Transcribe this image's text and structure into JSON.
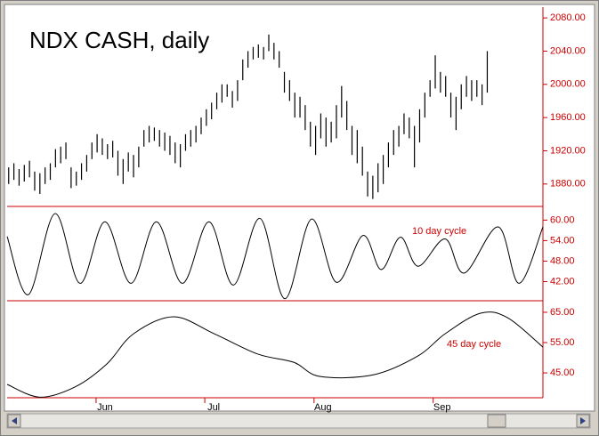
{
  "chart_data": [
    {
      "type": "ohlc",
      "title": "NDX CASH, daily",
      "color": "#000000",
      "xlim": [
        -0.3,
        102.7
      ],
      "ylim": [
        1853,
        2093
      ],
      "yticks": [
        {
          "value": 1880,
          "label": "1880.00"
        },
        {
          "value": 1920,
          "label": "1920.00"
        },
        {
          "value": 1960,
          "label": "1960.00"
        },
        {
          "value": 2000,
          "label": "2000.00"
        },
        {
          "value": 2040,
          "label": "2040.00"
        },
        {
          "value": 2080,
          "label": "2080.00"
        }
      ],
      "high": [
        1900,
        1905,
        1898,
        1903,
        1908,
        1895,
        1893,
        1900,
        1905,
        1922,
        1925,
        1930,
        1900,
        1895,
        1905,
        1915,
        1930,
        1940,
        1935,
        1928,
        1932,
        1920,
        1910,
        1918,
        1915,
        1925,
        1945,
        1950,
        1948,
        1945,
        1942,
        1938,
        1930,
        1928,
        1940,
        1945,
        1950,
        1960,
        1970,
        1978,
        1990,
        2000,
        2000,
        1992,
        2005,
        2030,
        2040,
        2045,
        2048,
        2045,
        2060,
        2050,
        2040,
        2015,
        2005,
        1990,
        1985,
        1975,
        1955,
        1950,
        1965,
        1960,
        1955,
        1975,
        1998,
        1980,
        1950,
        1945,
        1925,
        1895,
        1890,
        1905,
        1915,
        1930,
        1945,
        1950,
        1965,
        1960,
        1950,
        1970,
        1990,
        2005,
        2035,
        2015,
        2010,
        1990,
        1985,
        2000,
        2010,
        2005,
        2005,
        2000,
        2040
      ],
      "low": [
        1880,
        1885,
        1878,
        1883,
        1888,
        1872,
        1868,
        1880,
        1885,
        1900,
        1905,
        1910,
        1875,
        1878,
        1885,
        1895,
        1910,
        1918,
        1915,
        1910,
        1912,
        1890,
        1880,
        1895,
        1888,
        1900,
        1925,
        1930,
        1932,
        1925,
        1920,
        1915,
        1905,
        1900,
        1920,
        1925,
        1930,
        1940,
        1950,
        1958,
        1970,
        1978,
        1985,
        1972,
        1980,
        2005,
        2020,
        2030,
        2032,
        2030,
        2040,
        2030,
        2020,
        1990,
        1980,
        1960,
        1960,
        1945,
        1925,
        1915,
        1935,
        1925,
        1930,
        1935,
        1960,
        1945,
        1915,
        1905,
        1890,
        1865,
        1862,
        1870,
        1880,
        1900,
        1915,
        1925,
        1940,
        1935,
        1900,
        1930,
        1960,
        1985,
        1995,
        1990,
        1985,
        1960,
        1945,
        1970,
        1985,
        1980,
        1985,
        1975,
        1990
      ]
    },
    {
      "type": "line",
      "annotation": "10 day cycle",
      "color": "#000000",
      "annotation_color": "#cc0000",
      "xlim": [
        -0.3,
        102.7
      ],
      "ylim": [
        36.4,
        64
      ],
      "yticks": [
        {
          "value": 42,
          "label": "42.00"
        },
        {
          "value": 48,
          "label": "48.00"
        },
        {
          "value": 54,
          "label": "54.00"
        },
        {
          "value": 60,
          "label": "60.00"
        }
      ],
      "x": [
        -0.3,
        3.8,
        8.9,
        13.7,
        18.5,
        23.5,
        28.4,
        33.4,
        38.5,
        43.2,
        48.3,
        53.1,
        58.2,
        63.0,
        68.1,
        71.6,
        75.3,
        78.7,
        83.9,
        87.6,
        94.1,
        98.1,
        102.7
      ],
      "values": [
        55.2,
        38.2,
        61.9,
        41.5,
        59.5,
        41.5,
        59.5,
        41.5,
        59.5,
        41.0,
        60.5,
        37.0,
        60.3,
        41.8,
        55.5,
        45.5,
        55.0,
        46.5,
        54.5,
        44.5,
        58.0,
        41.5,
        58.0
      ]
    },
    {
      "type": "line",
      "annotation": "45 day cycle",
      "color": "#000000",
      "annotation_color": "#cc0000",
      "xlim": [
        -0.3,
        102.7
      ],
      "ylim": [
        36.8,
        68.8
      ],
      "yticks": [
        {
          "value": 45,
          "label": "45.00"
        },
        {
          "value": 55,
          "label": "55.00"
        },
        {
          "value": 65,
          "label": "65.00"
        }
      ],
      "xticks": [
        {
          "value": 16.8,
          "label": "Jun"
        },
        {
          "value": 37.7,
          "label": "Jul"
        },
        {
          "value": 58.7,
          "label": "Aug"
        },
        {
          "value": 81.6,
          "label": "Sep"
        }
      ],
      "x": [
        -0.3,
        6.0,
        12.9,
        18.9,
        24.0,
        31.7,
        39.4,
        47.9,
        54.8,
        59.9,
        70.2,
        78.7,
        83.9,
        90.7,
        95.9,
        102.7
      ],
      "values": [
        41.2,
        37.0,
        40.5,
        48.0,
        57.9,
        63.5,
        58.0,
        51.2,
        48.5,
        43.8,
        44.4,
        50.6,
        57.9,
        64.7,
        63.2,
        53.5
      ]
    }
  ]
}
